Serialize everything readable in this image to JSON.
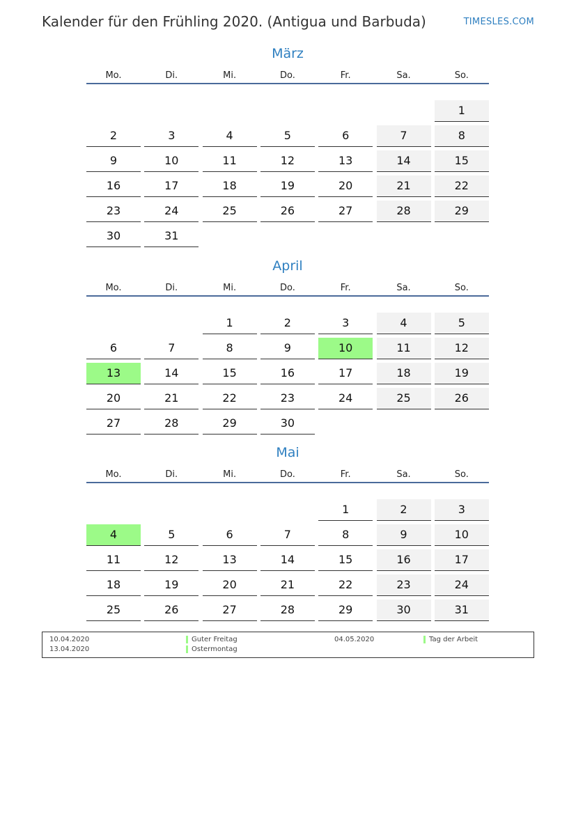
{
  "header": {
    "title": "Kalender für den Frühling 2020. (Antigua und Barbuda)",
    "brand": "TIMESLES.COM"
  },
  "weekdays": [
    "Mo.",
    "Di.",
    "Mi.",
    "Do.",
    "Fr.",
    "Sa.",
    "So."
  ],
  "colors": {
    "accent": "#2e7fc0",
    "holiday": "#9cfa88",
    "weekend": "#f2f2f2"
  },
  "months": [
    {
      "name": "März",
      "offset": 6,
      "days": 31,
      "holidays": []
    },
    {
      "name": "April",
      "offset": 2,
      "days": 30,
      "holidays": [
        10,
        13
      ]
    },
    {
      "name": "Mai",
      "offset": 4,
      "days": 31,
      "holidays": [
        4
      ]
    }
  ],
  "legend": [
    {
      "date": "10.04.2020",
      "name": "Guter Freitag"
    },
    {
      "date": "13.04.2020",
      "name": "Ostermontag"
    },
    {
      "date": "04.05.2020",
      "name": "Tag der Arbeit"
    }
  ]
}
